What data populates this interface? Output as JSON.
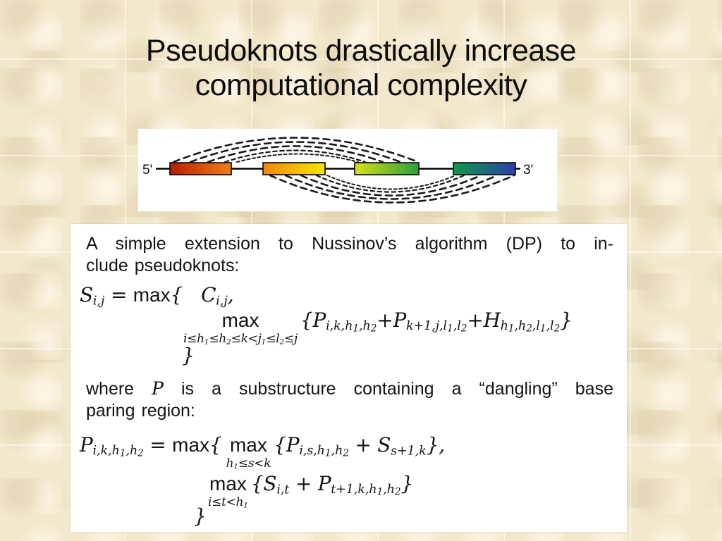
{
  "slide": {
    "title_line1": "Pseudoknots drastically increase",
    "title_line2": "computational complexity"
  },
  "diagram": {
    "label_5prime": "5'",
    "label_3prime": "3'",
    "backbone_color": "#000000",
    "arc_color": "#1a1a1a",
    "regions": [
      {
        "name": "region-1",
        "color_start": "#b71c00",
        "color_end": "#f08019"
      },
      {
        "name": "region-2",
        "color_start": "#f0860a",
        "color_end": "#f7e800"
      },
      {
        "name": "region-3",
        "color_start": "#d8e018",
        "color_end": "#28a03c"
      },
      {
        "name": "region-4",
        "color_start": "#12984a",
        "color_end": "#2c3fa8"
      }
    ],
    "pairings": [
      {
        "from": "region-1",
        "to": "region-3",
        "position": "above",
        "arcs": 5,
        "style": "dashed"
      },
      {
        "from": "region-2",
        "to": "region-4",
        "position": "below",
        "arcs": 5,
        "style": "dashed"
      }
    ]
  },
  "panel": {
    "intro_line1": "A simple extension to Nussinov’s algorithm (DP) to in-",
    "intro_line2": "clude pseudoknots:",
    "where_line1": "where <i>P</i> is a substructure containing a “dangling” base",
    "where_line2": "paring region:",
    "formula1": {
      "lhs": "S<sub>i,j</sub> = <span class=\"mx\">max</span>{",
      "arg1": "C<sub>i,j</sub>,",
      "max_label": "max",
      "max_limits": "i≤h<sub>1</sub>≤h<sub>2</sub>≤k&lt;j<sub>1</sub>≤l<sub>2</sub>≤j",
      "arg2": "{P<sub>i,k,h<sub>1</sub>,h<sub>2</sub></sub>+P<sub>k+1,j,l<sub>1</sub>,l<sub>2</sub></sub>+H<sub>h<sub>1</sub>,h<sub>2</sub>,l<sub>1</sub>,l<sub>2</sub></sub>}",
      "close": "}"
    },
    "formula2": {
      "lhs": "P<sub>i,k,h<sub>1</sub>,h<sub>2</sub></sub> = <span class=\"mx\">max</span>{",
      "max1_label": "max",
      "max1_limits": "h<sub>1</sub>≤s&lt;k",
      "arg1": "{P<sub>i,s,h<sub>1</sub>,h<sub>2</sub></sub> + S<sub>s+1,k</sub>},",
      "max2_label": "max",
      "max2_limits": "i≤t&lt;h<sub>1</sub>",
      "arg2": "{S<sub>i,t</sub> + P<sub>t+1,k,h<sub>1</sub>,h<sub>2</sub></sub>}",
      "close": "}"
    }
  },
  "colors": {
    "slide_background": "#f2e8cc",
    "panel_background": "#ffffff",
    "text": "#141414"
  }
}
